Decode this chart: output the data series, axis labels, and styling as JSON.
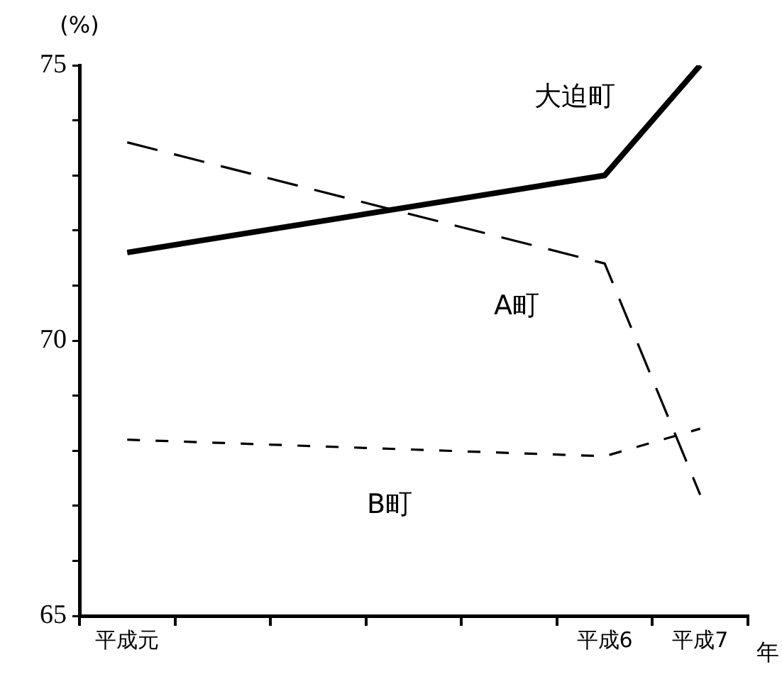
{
  "chart_data": {
    "type": "line",
    "ylabel": "(%)",
    "xlabel": "年",
    "categories": [
      "平成元",
      null,
      null,
      null,
      null,
      "平成6",
      "平成7"
    ],
    "series": [
      {
        "name": "大迫町",
        "color": "#000000",
        "line_style": "solid",
        "values": [
          71.6,
          null,
          null,
          null,
          null,
          73.0,
          75.0
        ]
      },
      {
        "name": "A町",
        "color": "#000000",
        "line_style": "dashed",
        "values": [
          73.6,
          null,
          null,
          null,
          null,
          71.4,
          67.2
        ]
      },
      {
        "name": "B町",
        "color": "#000000",
        "line_style": "dotted",
        "values": [
          68.2,
          null,
          null,
          null,
          null,
          67.9,
          68.4
        ]
      }
    ],
    "ylim": [
      65,
      75
    ],
    "yticks": [
      65,
      {
        "value": 66,
        "label": null
      },
      {
        "value": 67,
        "label": null
      },
      {
        "value": 68,
        "label": null
      },
      {
        "value": 69,
        "label": null
      },
      70,
      {
        "value": 71,
        "label": null
      },
      {
        "value": 72,
        "label": null
      },
      {
        "value": 73,
        "label": null
      },
      {
        "value": 74,
        "label": null
      },
      75
    ],
    "grid": false,
    "legend": false,
    "marker": "none"
  }
}
